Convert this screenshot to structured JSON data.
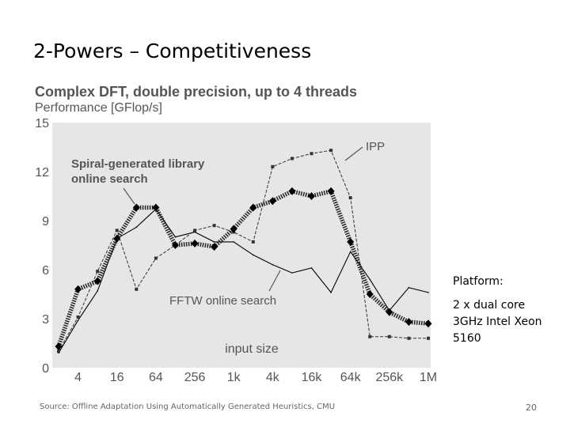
{
  "slide": {
    "title": "2-Powers – Competitiveness",
    "platform_label": "Platform:",
    "platform_lines": [
      "2 x dual core",
      "3GHz Intel Xeon",
      "5160"
    ],
    "source": "Source: Offline Adaptation Using Automatically Generated Heuristics, CMU",
    "page_number": "20"
  },
  "chart_data": {
    "type": "line",
    "title": "Complex DFT, double precision, up to 4 threads",
    "subtitle": "Performance [GFlop/s]",
    "xlabel": "input size",
    "ylabel": "",
    "ylim": [
      0,
      15
    ],
    "yticks": [
      0,
      3,
      6,
      9,
      12,
      15
    ],
    "x_tick_labels": [
      "4",
      "16",
      "64",
      "256",
      "1k",
      "4k",
      "16k",
      "64k",
      "256k",
      "1M"
    ],
    "x_log2_range": [
      1,
      20
    ],
    "x": [
      1,
      2,
      3,
      4,
      5,
      6,
      7,
      8,
      9,
      10,
      11,
      12,
      13,
      14,
      15,
      16,
      17,
      18,
      19,
      20
    ],
    "grid": false,
    "series": [
      {
        "name": "Spiral-generated library online search",
        "style": "thick-diamond",
        "color": "#000000",
        "values": [
          1.3,
          4.8,
          5.3,
          7.9,
          9.8,
          9.8,
          7.5,
          7.6,
          7.4,
          8.5,
          9.8,
          10.2,
          10.8,
          10.5,
          10.8,
          7.7,
          4.5,
          3.4,
          2.8,
          2.7
        ]
      },
      {
        "name": "IPP",
        "style": "dashed-square",
        "color": "#333333",
        "values": [
          1.0,
          3.1,
          5.9,
          8.4,
          4.8,
          6.7,
          7.5,
          8.4,
          8.7,
          8.3,
          7.7,
          12.3,
          12.8,
          13.1,
          13.3,
          10.4,
          1.9,
          1.9,
          1.8,
          1.8
        ]
      },
      {
        "name": "FFTW online search",
        "style": "solid-thin",
        "color": "#000000",
        "values": [
          0.9,
          2.9,
          4.7,
          7.9,
          8.6,
          9.7,
          8.0,
          8.3,
          7.7,
          7.7,
          6.9,
          6.3,
          5.8,
          6.1,
          4.6,
          7.1,
          5.4,
          3.5,
          4.9,
          4.6
        ]
      }
    ],
    "annotations": [
      {
        "lines": [
          "Spiral-generated library",
          "online search"
        ],
        "series": 0
      },
      {
        "lines": [
          "IPP"
        ],
        "series": 1
      },
      {
        "lines": [
          "FFTW online search"
        ],
        "series": 2
      }
    ]
  }
}
